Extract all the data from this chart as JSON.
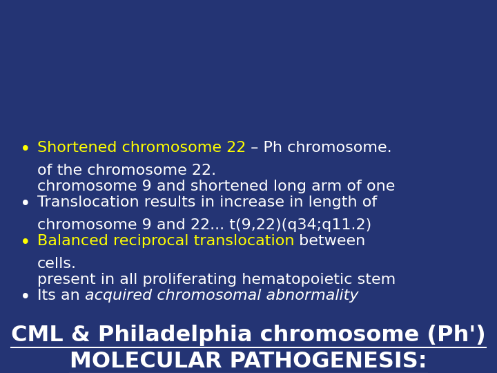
{
  "bg_color": "#243474",
  "white": "#ffffff",
  "yellow": "#ffff00",
  "title1": "MOLECULAR PATHOGENESIS:",
  "title2": "CML & Philadelphia chromosome (Ph')",
  "title_fontsize": 23,
  "body_fontsize": 16,
  "bullets": [
    {
      "dot_color": "#ffffff",
      "lines": [
        [
          {
            "text": "Its an ",
            "color": "#ffffff",
            "style": "normal"
          },
          {
            "text": "acquired chromosomal abnormality",
            "color": "#ffffff",
            "style": "italic"
          }
        ],
        [
          {
            "text": "present in all proliferating hematopoietic stem",
            "color": "#ffffff",
            "style": "normal"
          }
        ],
        [
          {
            "text": "cells.",
            "color": "#ffffff",
            "style": "normal"
          }
        ]
      ]
    },
    {
      "dot_color": "#ffff00",
      "lines": [
        [
          {
            "text": "Balanced reciprocal translocation",
            "color": "#ffff00",
            "style": "normal"
          },
          {
            "text": " between",
            "color": "#ffffff",
            "style": "normal"
          }
        ],
        [
          {
            "text": "chromosome 9 and 22... t(9,22)(q34;q11.2)",
            "color": "#ffffff",
            "style": "normal"
          }
        ]
      ]
    },
    {
      "dot_color": "#ffffff",
      "lines": [
        [
          {
            "text": "Translocation results in increase in length of",
            "color": "#ffffff",
            "style": "normal"
          }
        ],
        [
          {
            "text": "chromosome 9 and shortened long arm of one",
            "color": "#ffffff",
            "style": "normal"
          }
        ],
        [
          {
            "text": "of the chromosome 22.",
            "color": "#ffffff",
            "style": "normal"
          }
        ]
      ]
    },
    {
      "dot_color": "#ffff00",
      "lines": [
        [
          {
            "text": "Shortened chromosome 22",
            "color": "#ffff00",
            "style": "normal"
          },
          {
            "text": " – Ph chromosome.",
            "color": "#ffffff",
            "style": "normal"
          }
        ]
      ]
    }
  ]
}
